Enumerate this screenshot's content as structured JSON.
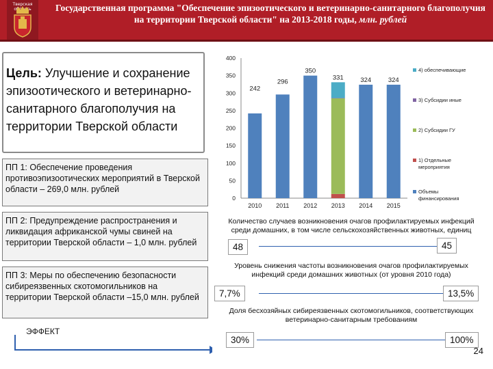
{
  "header": {
    "logo_text": "Тверская область",
    "title": "Государственная программа \"Обеспечение эпизоотического и ветеринарно-санитарного благополучия на территории Тверской области\" на 2013-2018 годы,",
    "unit": "млн. рублей"
  },
  "goal": {
    "label": "Цель:",
    "text": "Улучшение и сохранение эпизоотического и ветеринарно-санитарного благополучия на территории Тверской области"
  },
  "subprograms": [
    "ПП 1: Обеспечение проведения противоэпизоотических мероприятий в Тверской области – 269,0 млн. рублей",
    "ПП 2: Предупреждение распространения и ликвидация африканской чумы свиней на территории Тверской области – 1,0 млн. рублей",
    "ПП 3: Меры по обеспечению безопасности сибиреязвенных скотомогильников на территории Тверской области –15,0 млн. рублей"
  ],
  "effect_label": "ЭФФЕКТ",
  "indicators": [
    {
      "text": "Количество случаев возникновения очагов профилактируемых инфекций среди домашних, в том числе сельскохозяйственных животных, единиц",
      "from": "48",
      "to": "45"
    },
    {
      "text": "Уровень снижения частоты возникновения очагов профилактируемых инфекций среди домашних животных (от уровня 2010 года)",
      "from": "7,7%",
      "to": "13,5%"
    },
    {
      "text": "Доля бесхозяйных сибиреязвенных скотомогильников, соответствующих ветеринарно-санитарным требованиям",
      "from": "30%",
      "to": "100%"
    }
  ],
  "page_number": "24",
  "colors": {
    "header": "#b01e27",
    "objem": "#4f81bd",
    "otdelnye": "#c0504d",
    "subsidii_gu": "#9bbb59",
    "subsidii_inye": "#8064a2",
    "obespech": "#4bacc6"
  },
  "chart_data": {
    "type": "bar",
    "stacked": true,
    "categories": [
      "2010",
      "2011",
      "2012",
      "2013",
      "2014",
      "2015"
    ],
    "ylim": [
      0,
      400
    ],
    "yticks": [
      "0",
      "50",
      "100",
      "150",
      "200",
      "250",
      "300",
      "350",
      "400"
    ],
    "series": [
      {
        "name": "Объемы финансирования",
        "values": [
          242,
          296,
          350,
          0,
          324,
          324
        ]
      },
      {
        "name": "1) Отдельные мероприятия",
        "values": [
          0,
          0,
          0,
          12,
          0,
          0
        ]
      },
      {
        "name": "2) Субсидии ГУ",
        "values": [
          0,
          0,
          0,
          273,
          0,
          0
        ]
      },
      {
        "name": "3) Субсидии иные",
        "values": [
          0,
          0,
          0,
          1,
          0,
          0
        ]
      },
      {
        "name": "4) обеспечивающие",
        "values": [
          0,
          0,
          0,
          45,
          0,
          0
        ]
      }
    ],
    "data_labels": [
      "242",
      "296",
      "350",
      "331",
      "324",
      "324"
    ],
    "legend_order": [
      "4) обеспечивающие",
      "3) Субсидии иные",
      "2) Субсидии ГУ",
      "1) Отдельные мероприятия",
      "Объемы финансирования"
    ],
    "legend_position": "right"
  }
}
